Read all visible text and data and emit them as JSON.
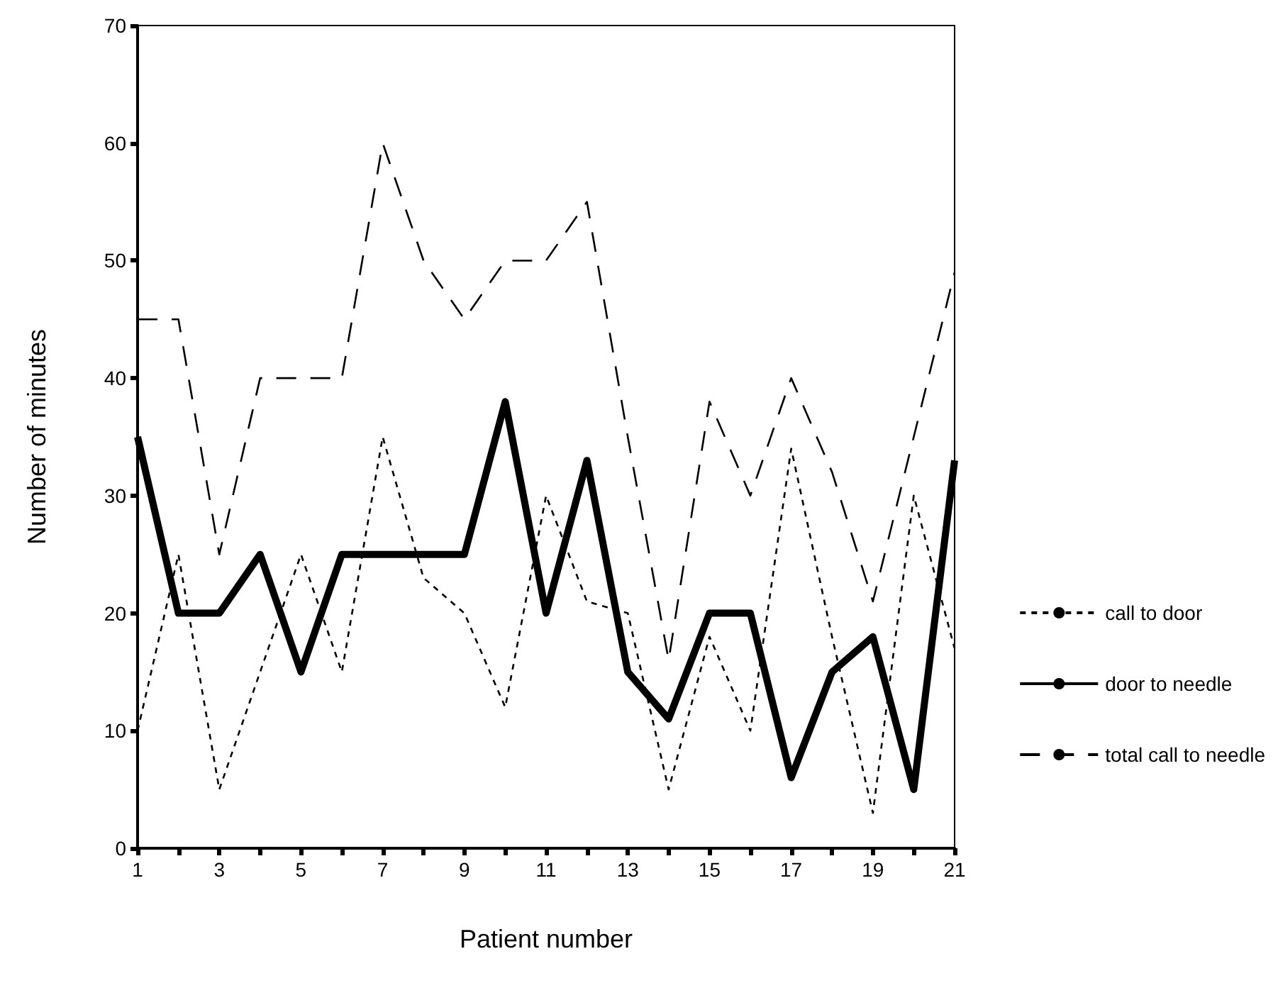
{
  "chart_data": {
    "type": "line",
    "xlabel": "Patient number",
    "ylabel": "Number of minutes",
    "x": [
      1,
      2,
      3,
      4,
      5,
      6,
      7,
      8,
      9,
      10,
      11,
      12,
      13,
      14,
      15,
      16,
      17,
      18,
      19,
      20,
      21
    ],
    "series": [
      {
        "name": "call to door",
        "color": "#000000",
        "line_style": "dotted",
        "values": [
          10,
          25,
          5,
          15,
          25,
          15,
          35,
          23,
          20,
          12,
          30,
          21,
          20,
          5,
          18,
          10,
          34,
          18,
          3,
          30,
          17
        ]
      },
      {
        "name": "door to needle",
        "color": "#000000",
        "line_style": "solid",
        "values": [
          35,
          20,
          20,
          25,
          15,
          25,
          25,
          25,
          25,
          38,
          20,
          33,
          15,
          11,
          20,
          20,
          6,
          15,
          18,
          5,
          33
        ]
      },
      {
        "name": "total call to needle",
        "color": "#000000",
        "line_style": "dashed",
        "values": [
          45,
          45,
          25,
          40,
          40,
          40,
          60,
          50,
          45,
          50,
          50,
          55,
          35,
          16,
          38,
          30,
          40,
          32,
          21,
          35,
          49
        ]
      }
    ],
    "xlim": [
      1,
      21
    ],
    "xticks": [
      1,
      {
        "value": 2,
        "label": null
      },
      3,
      {
        "value": 4,
        "label": null
      },
      5,
      {
        "value": 6,
        "label": null
      },
      7,
      {
        "value": 8,
        "label": null
      },
      9,
      {
        "value": 10,
        "label": null
      },
      11,
      {
        "value": 12,
        "label": null
      },
      13,
      {
        "value": 14,
        "label": null
      },
      15,
      {
        "value": 16,
        "label": null
      },
      17,
      {
        "value": 18,
        "label": null
      },
      19,
      {
        "value": 20,
        "label": null
      },
      21
    ],
    "ylim": [
      0,
      70
    ],
    "yticks": [
      0,
      10,
      20,
      30,
      40,
      50,
      60,
      70
    ],
    "grid": false,
    "legend": "right",
    "marker": "none"
  }
}
